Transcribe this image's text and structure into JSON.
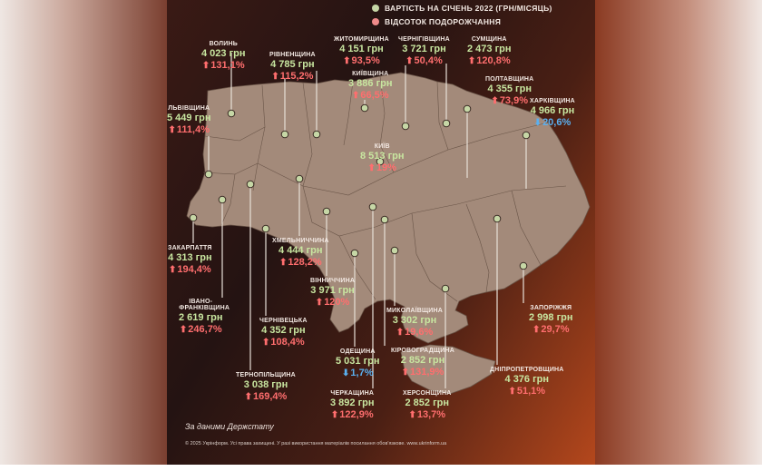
{
  "legend": [
    {
      "label": "ВАРТІСТЬ НА СІЧЕНЬ 2022 (ГРН/МІСЯЦЬ)",
      "color": "#c6d7a6"
    },
    {
      "label": "ВІДСОТОК ПОДОРОЖЧАННЯ",
      "color": "#f08a8a"
    }
  ],
  "regions": [
    {
      "key": "volyn",
      "name": "ВОЛИНЬ",
      "cost": "4 023 грн",
      "percent": "131,1%",
      "trend": "up"
    },
    {
      "key": "rivne",
      "name": "РІВНЕНЩИНА",
      "cost": "4 785 грн",
      "percent": "115,2%",
      "trend": "up"
    },
    {
      "key": "zhytomyr",
      "name": "ЖИТОМИРЩИНА",
      "cost": "4 151 грн",
      "percent": "93,5%",
      "trend": "up"
    },
    {
      "key": "chernihiv",
      "name": "ЧЕРНІГІВЩИНА",
      "cost": "3 721 грн",
      "percent": "50,4%",
      "trend": "up"
    },
    {
      "key": "sumy",
      "name": "СУМЩИНА",
      "cost": "2 473 грн",
      "percent": "120,8%",
      "trend": "up"
    },
    {
      "key": "kyivska",
      "name": "КИЇВЩИНА",
      "cost": "3 886 грн",
      "percent": "66,5%",
      "trend": "up"
    },
    {
      "key": "poltava",
      "name": "ПОЛТАВЩИНА",
      "cost": "4 355 грн",
      "percent": "73,9%",
      "trend": "up"
    },
    {
      "key": "lviv",
      "name": "ЛЬВІВЩИНА",
      "cost": "5 449 грн",
      "percent": "111,4%",
      "trend": "up"
    },
    {
      "key": "kharkiv",
      "name": "ХАРКІВЩИНА",
      "cost": "4 966 грн",
      "percent": "20,6%",
      "trend": "down"
    },
    {
      "key": "kyiv",
      "name": "КИЇВ",
      "cost": "8 513 грн",
      "percent": "19%",
      "trend": "up"
    },
    {
      "key": "khmelnytskyi",
      "name": "ХМЕЛЬНИЧЧИНА",
      "cost": "4 444 грн",
      "percent": "128,2%",
      "trend": "up"
    },
    {
      "key": "zakarpattia",
      "name": "ЗАКАРПАТТЯ",
      "cost": "4 313 грн",
      "percent": "194,4%",
      "trend": "up"
    },
    {
      "key": "vinnytsia",
      "name": "ВІННИЧЧИНА",
      "cost": "3 971 грн",
      "percent": "120%",
      "trend": "up"
    },
    {
      "key": "ivano",
      "name": "ІВАНО-ФРАНКІВЩИНА",
      "cost": "2 619 грн",
      "percent": "246,7%",
      "trend": "up"
    },
    {
      "key": "zaporizhzhia",
      "name": "ЗАПОРІЖЖЯ",
      "cost": "2 998 грн",
      "percent": "29,7%",
      "trend": "up"
    },
    {
      "key": "mykolaiv",
      "name": "МИКОЛАЇВЩИНА",
      "cost": "3 302 грн",
      "percent": "19,6%",
      "trend": "up"
    },
    {
      "key": "chernivtsi",
      "name": "ЧЕРНІВЕЦЬКА",
      "cost": "4 352 грн",
      "percent": "108,4%",
      "trend": "up"
    },
    {
      "key": "kirovohrad",
      "name": "КІРОВОГРАДЩИНА",
      "cost": "2 852 грн",
      "percent": "131,9%",
      "trend": "up"
    },
    {
      "key": "odesa",
      "name": "ОДЕЩИНА",
      "cost": "5 031 грн",
      "percent": "1,7%",
      "trend": "down"
    },
    {
      "key": "dnipro",
      "name": "ДНІПРОПЕТРОВЩИНА",
      "cost": "4 376 грн",
      "percent": "51,1%",
      "trend": "up"
    },
    {
      "key": "ternopil",
      "name": "ТЕРНОПІЛЬЩИНА",
      "cost": "3 038 грн",
      "percent": "169,4%",
      "trend": "up"
    },
    {
      "key": "cherkasy",
      "name": "ЧЕРКАЩИНА",
      "cost": "3 892 грн",
      "percent": "122,9%",
      "trend": "up"
    },
    {
      "key": "kherson",
      "name": "ХЕРСОНЩИНА",
      "cost": "2 852 грн",
      "percent": "13,7%",
      "trend": "up"
    }
  ],
  "source": "За даними Держстату",
  "copyright": "© 2025 Укрінформ. Усі права захищені. У разі використання матеріалів посилання обов'язкове. www.ukrinform.ua"
}
